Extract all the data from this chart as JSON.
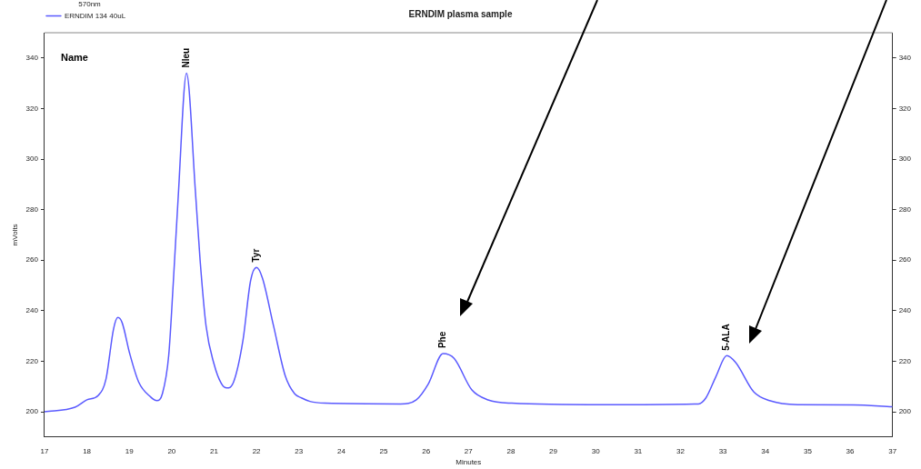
{
  "chart_data": {
    "type": "line",
    "title": "ERNDIM plasma sample",
    "xlabel": "Minutes",
    "ylabel": "mVolts",
    "legend_title": "570nm",
    "legend": "top left",
    "marker": "none",
    "line_style": "solid",
    "grid": false,
    "xlim": [
      17,
      37
    ],
    "xticks": [
      17,
      18,
      19,
      20,
      21,
      22,
      23,
      24,
      25,
      26,
      27,
      28,
      29,
      30,
      31,
      32,
      33,
      34,
      35,
      36,
      37
    ],
    "ylim": [
      190,
      350
    ],
    "yticks": [
      200,
      220,
      240,
      260,
      280,
      300,
      320,
      340
    ],
    "y2lim": [
      190,
      350
    ],
    "y2ticks": [
      200,
      220,
      240,
      260,
      280,
      300,
      320,
      340
    ],
    "annotations": [
      "Name",
      {
        "text": "Nleu",
        "x": 20.35,
        "y": 334
      },
      {
        "text": "Tyr",
        "x": 22.0,
        "y": 257
      },
      {
        "text": "Phe",
        "x": 26.4,
        "y": 223
      },
      {
        "text": "5-ALA",
        "x": 33.09,
        "y": 222
      }
    ],
    "series": [
      {
        "name": "ERNDIM 134 40uL",
        "color": "#5a5aff",
        "x": [
          17,
          17.72,
          18.0,
          18.27,
          18.45,
          18.63,
          18.73,
          18.83,
          19.01,
          19.22,
          19.5,
          19.65,
          19.78,
          19.93,
          20.04,
          20.15,
          20.35,
          20.56,
          20.67,
          20.81,
          21.0,
          21.17,
          21.3,
          21.46,
          21.68,
          21.86,
          22.0,
          22.14,
          22.4,
          22.68,
          22.9,
          23.06,
          23.26,
          23.62,
          25.4,
          25.77,
          26.05,
          26.4,
          26.66,
          27.08,
          27.46,
          28.02,
          30.17,
          32.42,
          32.6,
          32.84,
          33.09,
          33.3,
          33.73,
          34.1,
          34.76,
          36.07,
          37
        ],
        "values": [
          200,
          201.8,
          204.7,
          206.5,
          212.9,
          232.9,
          237.3,
          235.3,
          223,
          211.8,
          205.9,
          204.4,
          207.1,
          222.4,
          251.8,
          284,
          334,
          287,
          260,
          234,
          218.8,
          211.2,
          209.4,
          211.8,
          228.2,
          251.8,
          257.1,
          252.9,
          234.1,
          214.1,
          207.1,
          205.5,
          204.1,
          203.4,
          203.1,
          204.7,
          210.9,
          223,
          221.1,
          208.6,
          204.7,
          203.4,
          202.8,
          203.1,
          205.5,
          214.1,
          222.2,
          219.5,
          207.8,
          204.4,
          202.8,
          202.7,
          202
        ]
      }
    ]
  }
}
